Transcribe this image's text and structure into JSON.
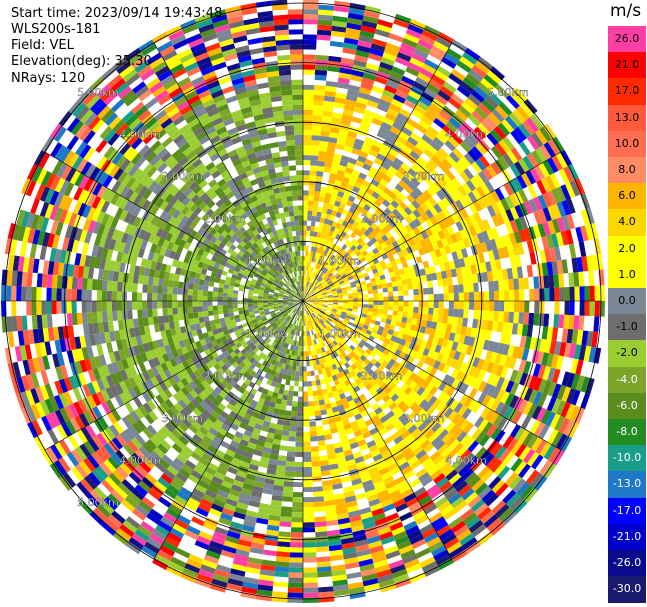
{
  "info": {
    "start_time": "Start time: 2023/09/14 19:43:48",
    "instrument": "WLS200s-181",
    "field": "Field: VEL",
    "elevation": "Elevation(deg): 35.30",
    "nrays": "NRays: 120"
  },
  "colorbar": {
    "unit": "m/s",
    "levels": [
      {
        "label": "26.0",
        "color": "#ff3ea6"
      },
      {
        "label": "21.0",
        "color": "#ff0000"
      },
      {
        "label": "17.0",
        "color": "#ff2a00"
      },
      {
        "label": "13.0",
        "color": "#ff5a3c"
      },
      {
        "label": "10.0",
        "color": "#ff6e50"
      },
      {
        "label": "8.0",
        "color": "#ff8c64"
      },
      {
        "label": "6.0",
        "color": "#ffb400"
      },
      {
        "label": "4.0",
        "color": "#ffd700"
      },
      {
        "label": "2.0",
        "color": "#ffff00"
      },
      {
        "label": "1.0",
        "color": "#ffff00"
      },
      {
        "label": "0.0",
        "color": "#7b8797"
      },
      {
        "label": "-1.0",
        "color": "#6e6e6e"
      },
      {
        "label": "-2.0",
        "color": "#9acd32"
      },
      {
        "label": "-4.0",
        "color": "#7ba428"
      },
      {
        "label": "-6.0",
        "color": "#5a8c1e"
      },
      {
        "label": "-8.0",
        "color": "#228b22"
      },
      {
        "label": "-10.0",
        "color": "#1a9e8a"
      },
      {
        "label": "-13.0",
        "color": "#1e78c8"
      },
      {
        "label": "-17.0",
        "color": "#0000ff"
      },
      {
        "label": "-21.0",
        "color": "#0000cd"
      },
      {
        "label": "-26.0",
        "color": "#0a0a8c"
      },
      {
        "label": "-30.0",
        "color": "#191970"
      }
    ]
  },
  "range_ring_labels": [
    {
      "ring": 1,
      "text": "1.00km"
    },
    {
      "ring": 1,
      "text": "1.00km"
    },
    {
      "ring": 1,
      "text": "1.00km"
    },
    {
      "ring": 1,
      "text": "1.00km"
    },
    {
      "ring": 2,
      "text": "2.00km"
    },
    {
      "ring": 2,
      "text": "2.00km"
    },
    {
      "ring": 2,
      "text": "2.00km"
    },
    {
      "ring": 2,
      "text": "2.00km"
    },
    {
      "ring": 3,
      "text": "3.00km"
    },
    {
      "ring": 3,
      "text": "3.00km"
    },
    {
      "ring": 3,
      "text": "3.00km"
    },
    {
      "ring": 3,
      "text": "3.00km"
    },
    {
      "ring": 4,
      "text": "4.00km"
    },
    {
      "ring": 4,
      "text": "4.00km"
    },
    {
      "ring": 4,
      "text": "4.00km"
    },
    {
      "ring": 4,
      "text": "4.00km"
    },
    {
      "ring": 5,
      "text": "5.00km"
    },
    {
      "ring": 5,
      "text": "5.00km"
    },
    {
      "ring": 5,
      "text": "5.00km"
    }
  ],
  "chart_data": {
    "type": "heatmap",
    "projection": "polar",
    "field": "VEL",
    "unit": "m/s",
    "nrays": 120,
    "range_rings_km": [
      1,
      2,
      3,
      4,
      5
    ],
    "max_range_km": 5,
    "sectors": [
      {
        "azimuth_deg": [
          0,
          180
        ],
        "inner_dominant": "2.0",
        "description_range": "near field mostly yellow (positive)"
      },
      {
        "azimuth_deg": [
          180,
          360
        ],
        "inner_dominant": "-2.0",
        "description_range": "near field mostly green (negative)"
      }
    ],
    "outer_noise_beyond_km": 4,
    "grid": true,
    "legend": "right"
  }
}
